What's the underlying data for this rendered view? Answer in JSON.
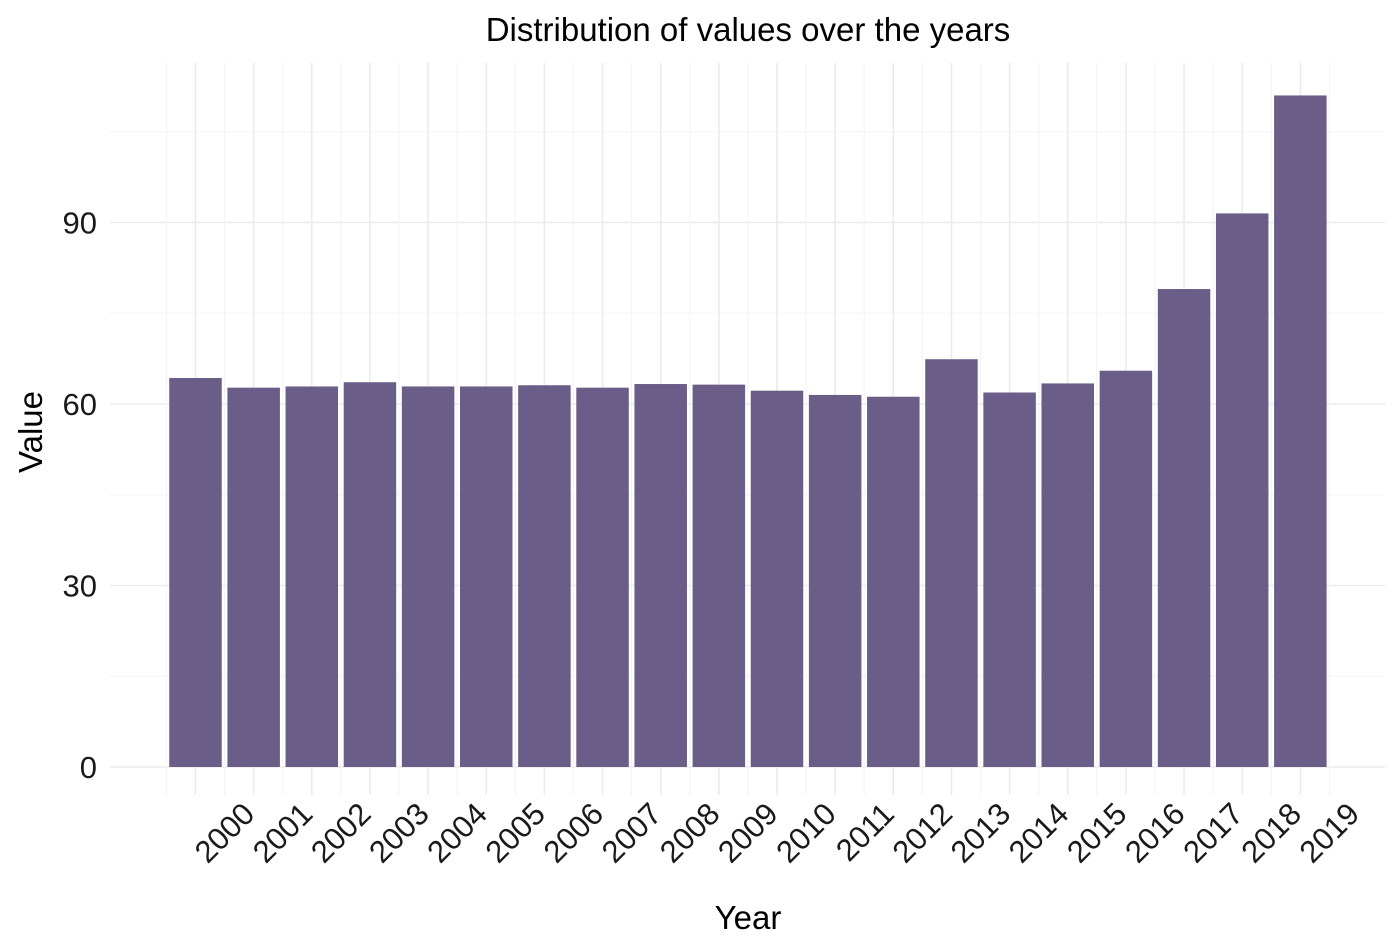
{
  "chart_data": {
    "type": "bar",
    "title": "Distribution of values over the years",
    "xlabel": "Year",
    "ylabel": "Value",
    "categories": [
      "2000",
      "2001",
      "2002",
      "2003",
      "2004",
      "2005",
      "2006",
      "2007",
      "2008",
      "2009",
      "2010",
      "2011",
      "2012",
      "2013",
      "2014",
      "2015",
      "2016",
      "2017",
      "2018",
      "2019"
    ],
    "values": [
      64.3,
      62.7,
      62.9,
      63.6,
      62.9,
      62.9,
      63.1,
      62.7,
      63.3,
      63.2,
      62.2,
      61.5,
      61.2,
      67.4,
      61.9,
      63.4,
      65.5,
      79.0,
      91.5,
      111.0
    ],
    "yticks": [
      0,
      30,
      60,
      90
    ],
    "ylim": [
      0,
      116
    ],
    "grid": true,
    "legend": "none",
    "bar_color": "#6a5d87",
    "x_tick_rotation": -45
  }
}
